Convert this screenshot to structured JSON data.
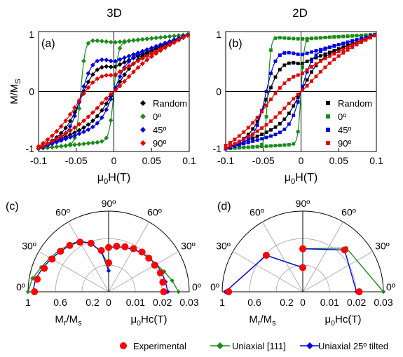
{
  "figure": {
    "label_3d": "3D",
    "label_2d": "2D",
    "legend": [
      {
        "label": "Experimental",
        "color": "#ff0000",
        "marker": "circle"
      },
      {
        "label": "Uniaxial [111]",
        "color": "#1a8c1a",
        "marker": "diamond-line"
      },
      {
        "label": "Uniaxial 25º tilted",
        "color": "#0000e0",
        "marker": "diamond-line"
      }
    ]
  },
  "chart_data": [
    {
      "panel": "(a)",
      "type": "scatter",
      "xlabel": "μ0H (T)",
      "ylabel": "M/MS",
      "xlim": [
        -0.1,
        0.1
      ],
      "ylim": [
        -1.05,
        1.05
      ],
      "xticks": [
        "-0.1",
        "-0.05",
        "0",
        "0.05",
        "0.1"
      ],
      "yticks": [
        "-1",
        "0",
        "1"
      ],
      "legend_position": "bottom-right",
      "series": [
        {
          "name": "Random",
          "color": "#000000",
          "marker": "diamond",
          "mr": 0.42,
          "hc": 0.02,
          "w": 0.022
        },
        {
          "name": "0º",
          "color": "#1a8c1a",
          "marker": "diamond",
          "mr": 0.86,
          "hc": 0.022,
          "w": 0.006
        },
        {
          "name": "45º",
          "color": "#0000e0",
          "marker": "diamond",
          "mr": 0.52,
          "hc": 0.021,
          "w": 0.016
        },
        {
          "name": "90º",
          "color": "#e00000",
          "marker": "diamond",
          "mr": 0.28,
          "hc": 0.019,
          "w": 0.032
        }
      ]
    },
    {
      "panel": "(b)",
      "type": "scatter",
      "xlabel": "μ0H (T)",
      "ylabel": "",
      "xlim": [
        -0.1,
        0.1
      ],
      "ylim": [
        -1.05,
        1.05
      ],
      "xticks": [
        "-0.1",
        "-0.05",
        "0",
        "0.05",
        "0.1"
      ],
      "yticks": [
        "-1",
        "0",
        "1"
      ],
      "legend_position": "bottom-right",
      "series": [
        {
          "name": "Random",
          "color": "#000000",
          "marker": "square",
          "mr": 0.48,
          "hc": 0.021,
          "w": 0.02
        },
        {
          "name": "0º",
          "color": "#1a8c1a",
          "marker": "square",
          "mr": 0.92,
          "hc": 0.022,
          "w": 0.004
        },
        {
          "name": "45º",
          "color": "#0000e0",
          "marker": "square",
          "mr": 0.64,
          "hc": 0.023,
          "w": 0.014
        },
        {
          "name": "90º",
          "color": "#e00000",
          "marker": "square",
          "mr": 0.3,
          "hc": 0.016,
          "w": 0.038
        }
      ]
    },
    {
      "panel": "(c)",
      "type": "polar",
      "left_label": "Mr/Ms",
      "right_label": "μ0Hc (T)",
      "left_ticks": [
        "1",
        "0.6",
        "0.2"
      ],
      "right_ticks": [
        "0",
        "0.01",
        "0.02",
        "0.03"
      ],
      "angle_labels": [
        "0º",
        "30º",
        "60º",
        "90º"
      ],
      "mr_max": 1.0,
      "hc_max": 0.03,
      "mr_series": [
        {
          "name": "Experimental",
          "angle": [
            0,
            10,
            20,
            30,
            40,
            50,
            60,
            70,
            80,
            90
          ],
          "r": [
            0.92,
            0.9,
            0.85,
            0.81,
            0.78,
            0.75,
            0.71,
            0.64,
            0.52,
            0.36
          ]
        },
        {
          "name": "Uniaxial [111]",
          "angle": [
            0,
            10,
            20,
            30,
            40,
            50,
            60,
            70,
            80,
            90
          ],
          "r": [
            1.0,
            0.96,
            0.89,
            0.84,
            0.8,
            0.76,
            0.73,
            0.64,
            0.5,
            0.33
          ]
        },
        {
          "name": "Uniaxial 25º tilted",
          "angle": [
            0,
            10,
            20,
            30,
            40,
            50,
            60,
            70,
            80,
            90
          ],
          "r": [
            0.94,
            0.92,
            0.87,
            0.82,
            0.78,
            0.75,
            0.72,
            0.64,
            0.5,
            0.26
          ]
        }
      ],
      "hc_series": [
        {
          "name": "Experimental",
          "angle": [
            0,
            10,
            20,
            30,
            40,
            50,
            60,
            70,
            80,
            90
          ],
          "r": [
            0.0205,
            0.0205,
            0.0205,
            0.0198,
            0.0195,
            0.0193,
            0.0185,
            0.0178,
            0.0172,
            0.0165
          ]
        },
        {
          "name": "Uniaxial [111]",
          "angle": [
            0,
            10,
            20,
            30,
            40,
            50,
            60,
            70,
            80,
            90
          ],
          "r": [
            0.026,
            0.024,
            0.022,
            0.0205,
            0.0195,
            0.019,
            0.0182,
            0.0176,
            0.017,
            0.0165
          ]
        },
        {
          "name": "Uniaxial 25º tilted",
          "angle": [
            0,
            10,
            20,
            30,
            40,
            50,
            60,
            70,
            80,
            90
          ],
          "r": [
            0.022,
            0.0215,
            0.021,
            0.0205,
            0.0195,
            0.019,
            0.0182,
            0.0176,
            0.017,
            0.0165
          ]
        }
      ]
    },
    {
      "panel": "(d)",
      "type": "polar",
      "left_label": "Mr/Ms",
      "right_label": "μ0Hc (T)",
      "left_ticks": [
        "1",
        "0.6",
        "0.2"
      ],
      "right_ticks": [
        "0",
        "0.01",
        "0.02",
        "0.03"
      ],
      "angle_labels": [
        "0º",
        "30º",
        "60º",
        "90º"
      ],
      "mr_max": 1.0,
      "hc_max": 0.03,
      "mr_series": [
        {
          "name": "Experimental",
          "angle": [
            0,
            45,
            90
          ],
          "r": [
            0.92,
            0.64,
            0.3
          ]
        },
        {
          "name": "Uniaxial [111]",
          "angle": [
            0,
            45,
            90
          ],
          "r": [
            0.96,
            0.64,
            0.3
          ]
        },
        {
          "name": "Uniaxial 25º tilted",
          "angle": [
            0,
            45,
            90
          ],
          "r": [
            0.96,
            0.64,
            0.3
          ]
        }
      ],
      "hc_series": [
        {
          "name": "Experimental",
          "angle": [
            0,
            45,
            90
          ],
          "r": [
            0.021,
            0.022,
            0.016
          ]
        },
        {
          "name": "Uniaxial [111]",
          "angle": [
            0,
            45,
            90
          ],
          "r": [
            0.03,
            0.023,
            0.016
          ]
        },
        {
          "name": "Uniaxial 25º tilted",
          "angle": [
            0,
            45,
            90
          ],
          "r": [
            0.02,
            0.022,
            0.016
          ]
        }
      ]
    }
  ]
}
